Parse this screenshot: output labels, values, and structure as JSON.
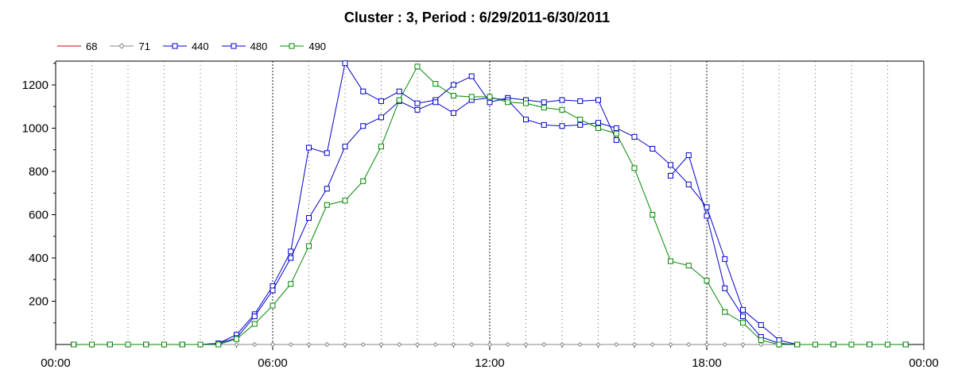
{
  "chart_data": {
    "type": "line",
    "title": "Cluster : 3, Period : 6/29/2011-6/30/2011",
    "xlabel": "",
    "ylabel": "",
    "x_tick_labels": [
      "00:00",
      "06:00",
      "12:00",
      "18:00",
      "00:00"
    ],
    "y_ticks": [
      200,
      400,
      600,
      800,
      1000,
      1200
    ],
    "xlim": [
      0,
      24
    ],
    "ylim": [
      0,
      1310
    ],
    "legend_position": "top-left",
    "grid": "dotted vertical",
    "x": [
      0.5,
      1,
      1.5,
      2,
      2.5,
      3,
      3.5,
      4,
      4.5,
      5,
      5.5,
      6,
      6.5,
      7,
      7.5,
      8,
      8.5,
      9,
      9.5,
      10,
      10.5,
      11,
      11.5,
      12,
      12.5,
      13,
      13.5,
      14,
      14.5,
      15,
      15.5,
      16,
      16.5,
      17,
      17.5,
      18,
      18.5,
      19,
      19.5,
      20,
      20.5,
      21,
      21.5,
      22,
      22.5,
      23,
      23.5
    ],
    "series": [
      {
        "name": "68",
        "color": "#cc0000",
        "marker": "none",
        "values": [
          0,
          0,
          0,
          0,
          0,
          0,
          0,
          0,
          0,
          0,
          0,
          0,
          0,
          0,
          0,
          0,
          0,
          0,
          0,
          0,
          0,
          0,
          0,
          0,
          0,
          0,
          0,
          0,
          0,
          0,
          0,
          0,
          0,
          0,
          0,
          0,
          0,
          0,
          0,
          0,
          0,
          0,
          0,
          0,
          0,
          0,
          0
        ]
      },
      {
        "name": "71",
        "color": "#888888",
        "marker": "diamond",
        "values": [
          0,
          0,
          0,
          0,
          0,
          0,
          0,
          0,
          0,
          0,
          0,
          0,
          0,
          0,
          0,
          0,
          0,
          0,
          0,
          0,
          0,
          0,
          0,
          0,
          0,
          0,
          0,
          0,
          0,
          0,
          0,
          0,
          0,
          0,
          0,
          0,
          0,
          0,
          0,
          0,
          0,
          0,
          0,
          0,
          0,
          0,
          0
        ]
      },
      {
        "name": "440",
        "color": "#0000cc",
        "marker": "square",
        "values": [
          0,
          0,
          0,
          0,
          0,
          0,
          0,
          0,
          5,
          45,
          140,
          270,
          430,
          910,
          885,
          1300,
          1170,
          1125,
          1170,
          1115,
          1130,
          1200,
          1240,
          1120,
          1140,
          1130,
          1120,
          1130,
          1125,
          1130,
          945,
          null,
          null,
          780,
          875,
          595,
          260,
          130,
          35,
          5,
          0,
          0,
          0,
          0,
          0,
          0,
          0
        ]
      },
      {
        "name": "480",
        "color": "#0000cc",
        "marker": "square",
        "values": [
          0,
          0,
          0,
          0,
          0,
          0,
          0,
          0,
          5,
          30,
          130,
          250,
          400,
          585,
          720,
          915,
          1010,
          1050,
          1125,
          1085,
          1120,
          1070,
          1130,
          1140,
          1130,
          1040,
          1015,
          1010,
          1015,
          1025,
          1000,
          960,
          905,
          830,
          740,
          635,
          395,
          160,
          90,
          20,
          0,
          0,
          0,
          0,
          0,
          0,
          0
        ]
      },
      {
        "name": "490",
        "color": "#008800",
        "marker": "square",
        "values": [
          0,
          0,
          0,
          0,
          0,
          0,
          0,
          0,
          0,
          25,
          95,
          180,
          280,
          455,
          645,
          665,
          755,
          915,
          1130,
          1285,
          1205,
          1150,
          1145,
          1145,
          1120,
          1115,
          1095,
          1085,
          1040,
          1000,
          975,
          815,
          600,
          385,
          365,
          295,
          150,
          100,
          20,
          0,
          0,
          0,
          0,
          0,
          0,
          0,
          0
        ]
      }
    ]
  }
}
